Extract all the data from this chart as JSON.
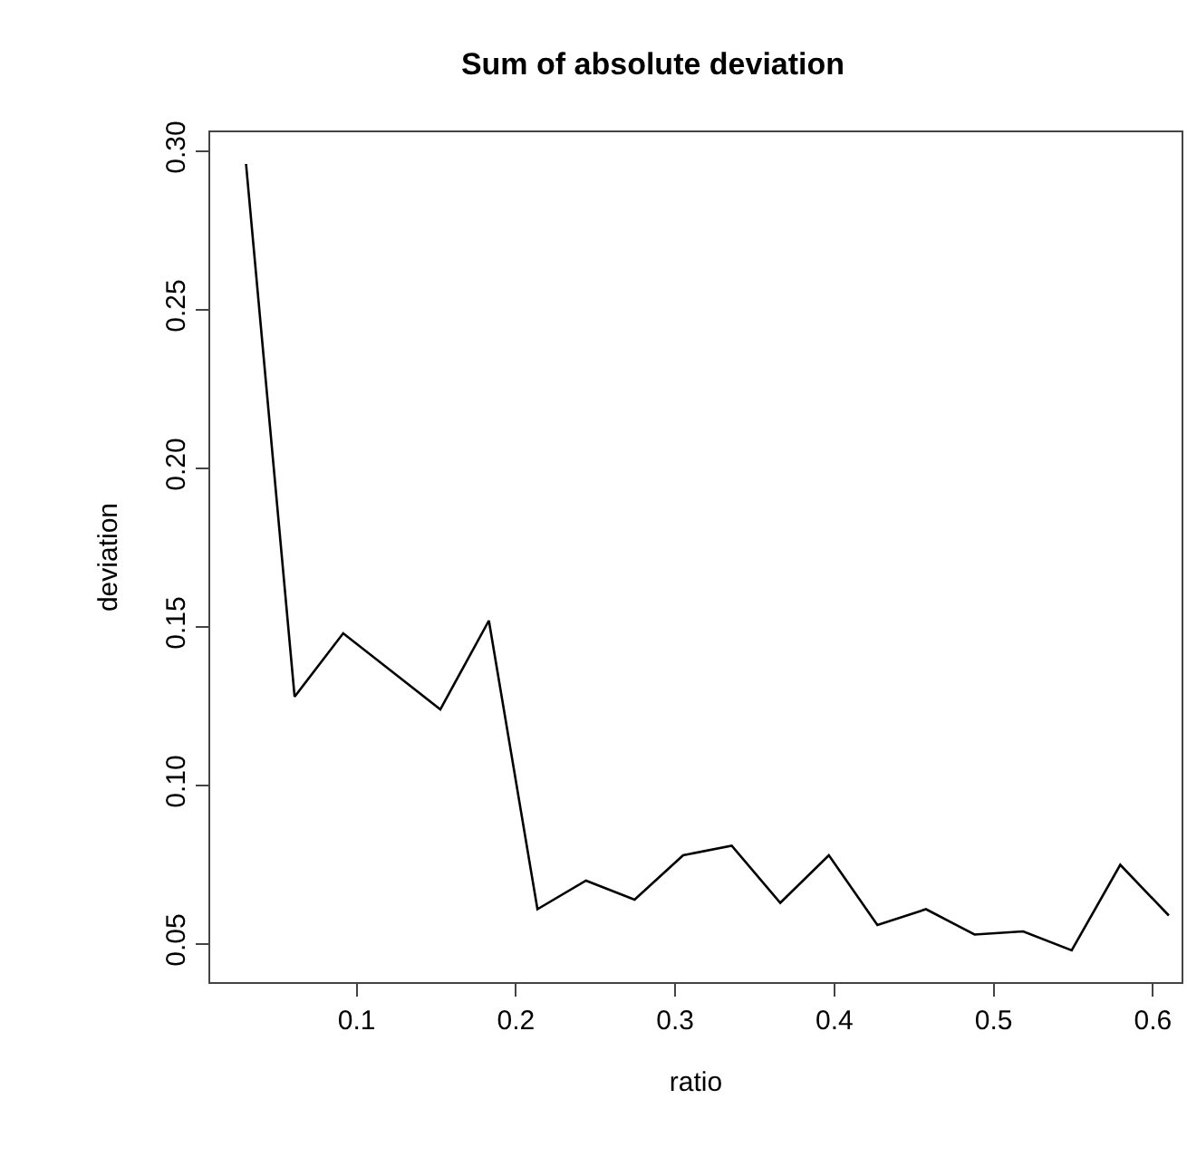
{
  "chart_data": {
    "type": "line",
    "title": "Sum of absolute deviation",
    "xlabel": "ratio",
    "ylabel": "deviation",
    "x": [
      0.0305,
      0.061,
      0.0915,
      0.122,
      0.1525,
      0.183,
      0.2135,
      0.244,
      0.2745,
      0.305,
      0.3355,
      0.366,
      0.3965,
      0.427,
      0.4575,
      0.488,
      0.5185,
      0.549,
      0.5795,
      0.61
    ],
    "series": [
      {
        "color": "#000000",
        "values": [
          0.296,
          0.128,
          0.148,
          0.136,
          0.124,
          0.152,
          0.061,
          0.07,
          0.064,
          0.078,
          0.081,
          0.063,
          0.078,
          0.056,
          0.061,
          0.053,
          0.054,
          0.048,
          0.075,
          0.059
        ]
      }
    ],
    "xlim": [
      0.008,
      0.618
    ],
    "ylim": [
      0.038,
      0.306
    ],
    "xticks": [
      0.1,
      0.2,
      0.3,
      0.4,
      0.5,
      0.6
    ],
    "yticks": [
      0.05,
      {
        "value": 0.1,
        "label": "0.10"
      },
      0.15,
      {
        "value": 0.2,
        "label": "0.20"
      },
      0.25,
      {
        "value": 0.3,
        "label": "0.30"
      }
    ],
    "grid": false,
    "marker": "none",
    "line_style": "solid"
  }
}
